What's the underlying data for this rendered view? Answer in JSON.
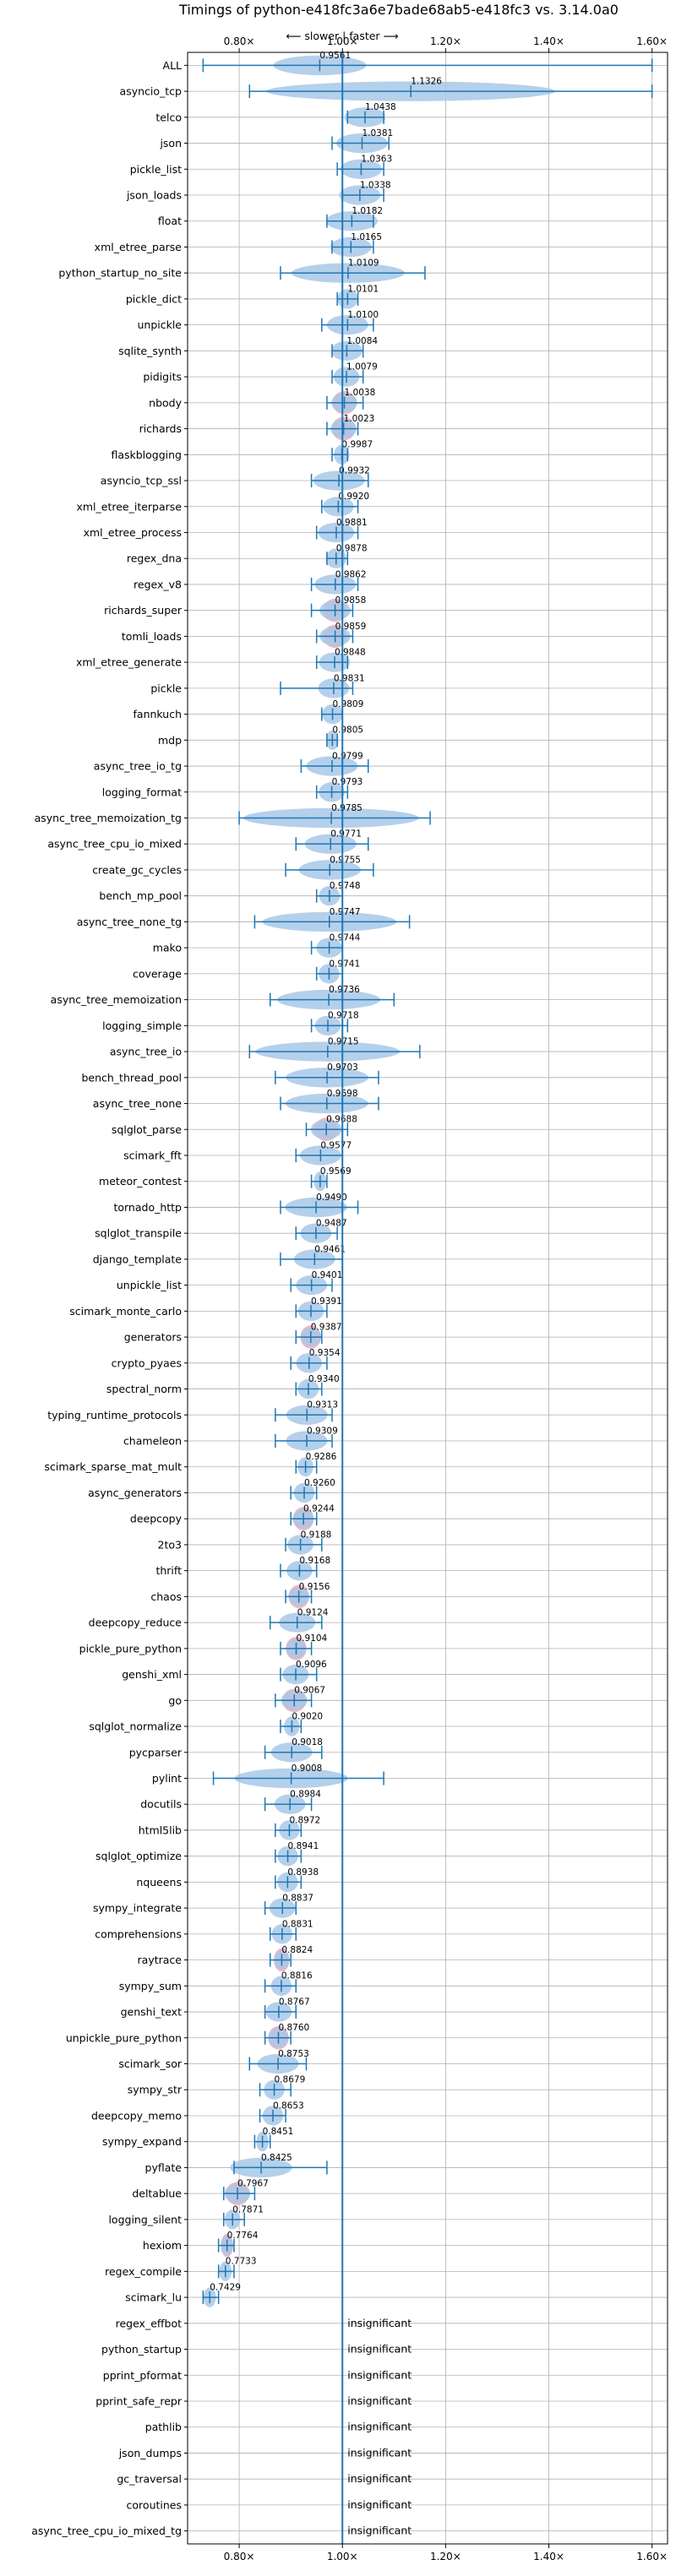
{
  "chart_data": {
    "type": "violin",
    "title": "Timings of python-e418fc3a6e7bade68ab5-e418fc3 vs. 3.14.0a0",
    "direction_label": "⟵ slower | faster ⟶",
    "x_ticks": [
      {
        "value": 0.8,
        "label": "0.80×"
      },
      {
        "value": 1.0,
        "label": "1.00×"
      },
      {
        "value": 1.2,
        "label": "1.20×"
      },
      {
        "value": 1.4,
        "label": "1.40×"
      },
      {
        "value": 1.6,
        "label": "1.60×"
      }
    ],
    "xlim": [
      0.7,
      1.63
    ],
    "reference_line": 1.0,
    "grid": true,
    "colors": {
      "violin": "#a8c8e8",
      "error_bar": "#1f77b4",
      "highlight": "#f4a8b4",
      "grid": "#b0b0b0",
      "reference": "#1f77b4"
    },
    "insignificant_label": "insignificant",
    "benchmarks": [
      {
        "name": "ALL",
        "value": 0.9561,
        "label": "0.9561",
        "lo": 0.73,
        "hi": 1.6,
        "w": 0.09
      },
      {
        "name": "asyncio_tcp",
        "value": 1.1326,
        "label": "1.1326",
        "lo": 0.82,
        "hi": 1.6,
        "w": 0.28
      },
      {
        "name": "telco",
        "value": 1.0438,
        "label": "1.0438",
        "lo": 1.01,
        "hi": 1.08,
        "w": 0.04
      },
      {
        "name": "json",
        "value": 1.0381,
        "label": "1.0381",
        "lo": 0.98,
        "hi": 1.09,
        "w": 0.05
      },
      {
        "name": "pickle_list",
        "value": 1.0363,
        "label": "1.0363",
        "lo": 0.99,
        "hi": 1.08,
        "w": 0.04
      },
      {
        "name": "json_loads",
        "value": 1.0338,
        "label": "1.0338",
        "lo": 1.0,
        "hi": 1.08,
        "w": 0.04
      },
      {
        "name": "float",
        "value": 1.0182,
        "label": "1.0182",
        "lo": 0.97,
        "hi": 1.06,
        "w": 0.05
      },
      {
        "name": "xml_etree_parse",
        "value": 1.0165,
        "label": "1.0165",
        "lo": 0.98,
        "hi": 1.06,
        "w": 0.04
      },
      {
        "name": "python_startup_no_site",
        "value": 1.0109,
        "label": "1.0109",
        "lo": 0.88,
        "hi": 1.16,
        "w": 0.11
      },
      {
        "name": "pickle_dict",
        "value": 1.0101,
        "label": "1.0101",
        "lo": 0.99,
        "hi": 1.03,
        "w": 0.02
      },
      {
        "name": "unpickle",
        "value": 1.01,
        "label": "1.0100",
        "lo": 0.96,
        "hi": 1.06,
        "w": 0.04
      },
      {
        "name": "sqlite_synth",
        "value": 1.0084,
        "label": "1.0084",
        "lo": 0.98,
        "hi": 1.04,
        "w": 0.03
      },
      {
        "name": "pidigits",
        "value": 1.0079,
        "label": "1.0079",
        "lo": 0.98,
        "hi": 1.04,
        "w": 0.025
      },
      {
        "name": "nbody",
        "value": 1.0038,
        "label": "1.0038",
        "lo": 0.97,
        "hi": 1.04,
        "w": 0.025,
        "highlight": true
      },
      {
        "name": "richards",
        "value": 1.0023,
        "label": "1.0023",
        "lo": 0.97,
        "hi": 1.03,
        "w": 0.025,
        "highlight": true
      },
      {
        "name": "flaskblogging",
        "value": 0.9987,
        "label": "0.9987",
        "lo": 0.98,
        "hi": 1.01,
        "w": 0.015
      },
      {
        "name": "asyncio_tcp_ssl",
        "value": 0.9932,
        "label": "0.9932",
        "lo": 0.94,
        "hi": 1.05,
        "w": 0.05
      },
      {
        "name": "xml_etree_iterparse",
        "value": 0.992,
        "label": "0.9920",
        "lo": 0.96,
        "hi": 1.03,
        "w": 0.03
      },
      {
        "name": "xml_etree_process",
        "value": 0.9881,
        "label": "0.9881",
        "lo": 0.95,
        "hi": 1.03,
        "w": 0.035
      },
      {
        "name": "regex_dna",
        "value": 0.9878,
        "label": "0.9878",
        "lo": 0.97,
        "hi": 1.01,
        "w": 0.02
      },
      {
        "name": "regex_v8",
        "value": 0.9862,
        "label": "0.9862",
        "lo": 0.94,
        "hi": 1.03,
        "w": 0.04
      },
      {
        "name": "richards_super",
        "value": 0.9858,
        "label": "0.9858",
        "lo": 0.94,
        "hi": 1.02,
        "w": 0.03,
        "highlight": true
      },
      {
        "name": "tomli_loads",
        "value": 0.9859,
        "label": "0.9859",
        "lo": 0.95,
        "hi": 1.02,
        "w": 0.03,
        "highlight": true
      },
      {
        "name": "xml_etree_generate",
        "value": 0.9848,
        "label": "0.9848",
        "lo": 0.95,
        "hi": 1.01,
        "w": 0.03
      },
      {
        "name": "pickle",
        "value": 0.9831,
        "label": "0.9831",
        "lo": 0.88,
        "hi": 1.02,
        "w": 0.03
      },
      {
        "name": "fannkuch",
        "value": 0.9809,
        "label": "0.9809",
        "lo": 0.96,
        "hi": 1.0,
        "w": 0.02
      },
      {
        "name": "mdp",
        "value": 0.9805,
        "label": "0.9805",
        "lo": 0.97,
        "hi": 0.99,
        "w": 0.012
      },
      {
        "name": "async_tree_io_tg",
        "value": 0.9799,
        "label": "0.9799",
        "lo": 0.92,
        "hi": 1.05,
        "w": 0.05
      },
      {
        "name": "logging_format",
        "value": 0.9793,
        "label": "0.9793",
        "lo": 0.95,
        "hi": 1.01,
        "w": 0.025
      },
      {
        "name": "async_tree_memoization_tg",
        "value": 0.9785,
        "label": "0.9785",
        "lo": 0.8,
        "hi": 1.17,
        "w": 0.17
      },
      {
        "name": "async_tree_cpu_io_mixed",
        "value": 0.9771,
        "label": "0.9771",
        "lo": 0.91,
        "hi": 1.05,
        "w": 0.05
      },
      {
        "name": "create_gc_cycles",
        "value": 0.9755,
        "label": "0.9755",
        "lo": 0.89,
        "hi": 1.06,
        "w": 0.06
      },
      {
        "name": "bench_mp_pool",
        "value": 0.9748,
        "label": "0.9748",
        "lo": 0.95,
        "hi": 1.0,
        "w": 0.02
      },
      {
        "name": "async_tree_none_tg",
        "value": 0.9747,
        "label": "0.9747",
        "lo": 0.83,
        "hi": 1.13,
        "w": 0.13
      },
      {
        "name": "mako",
        "value": 0.9744,
        "label": "0.9744",
        "lo": 0.94,
        "hi": 1.0,
        "w": 0.025
      },
      {
        "name": "coverage",
        "value": 0.9741,
        "label": "0.9741",
        "lo": 0.95,
        "hi": 1.0,
        "w": 0.02
      },
      {
        "name": "async_tree_memoization",
        "value": 0.9736,
        "label": "0.9736",
        "lo": 0.86,
        "hi": 1.1,
        "w": 0.1
      },
      {
        "name": "logging_simple",
        "value": 0.9718,
        "label": "0.9718",
        "lo": 0.94,
        "hi": 1.01,
        "w": 0.025
      },
      {
        "name": "async_tree_io",
        "value": 0.9715,
        "label": "0.9715",
        "lo": 0.82,
        "hi": 1.15,
        "w": 0.14
      },
      {
        "name": "bench_thread_pool",
        "value": 0.9703,
        "label": "0.9703",
        "lo": 0.87,
        "hi": 1.07,
        "w": 0.08
      },
      {
        "name": "async_tree_none",
        "value": 0.9698,
        "label": "0.9698",
        "lo": 0.88,
        "hi": 1.07,
        "w": 0.08
      },
      {
        "name": "sqlglot_parse",
        "value": 0.9688,
        "label": "0.9688",
        "lo": 0.93,
        "hi": 1.01,
        "w": 0.03,
        "highlight": true
      },
      {
        "name": "scimark_fft",
        "value": 0.9577,
        "label": "0.9577",
        "lo": 0.91,
        "hi": 1.0,
        "w": 0.04
      },
      {
        "name": "meteor_contest",
        "value": 0.9569,
        "label": "0.9569",
        "lo": 0.94,
        "hi": 0.97,
        "w": 0.012
      },
      {
        "name": "tornado_http",
        "value": 0.949,
        "label": "0.9490",
        "lo": 0.88,
        "hi": 1.03,
        "w": 0.06
      },
      {
        "name": "sqlglot_transpile",
        "value": 0.9487,
        "label": "0.9487",
        "lo": 0.91,
        "hi": 0.99,
        "w": 0.03
      },
      {
        "name": "django_template",
        "value": 0.9461,
        "label": "0.9461",
        "lo": 0.88,
        "hi": 1.0,
        "w": 0.04
      },
      {
        "name": "unpickle_list",
        "value": 0.9401,
        "label": "0.9401",
        "lo": 0.9,
        "hi": 0.98,
        "w": 0.03
      },
      {
        "name": "scimark_monte_carlo",
        "value": 0.9391,
        "label": "0.9391",
        "lo": 0.91,
        "hi": 0.97,
        "w": 0.025
      },
      {
        "name": "generators",
        "value": 0.9387,
        "label": "0.9387",
        "lo": 0.91,
        "hi": 0.96,
        "w": 0.02,
        "highlight": true
      },
      {
        "name": "crypto_pyaes",
        "value": 0.9354,
        "label": "0.9354",
        "lo": 0.9,
        "hi": 0.97,
        "w": 0.025
      },
      {
        "name": "spectral_norm",
        "value": 0.934,
        "label": "0.9340",
        "lo": 0.91,
        "hi": 0.96,
        "w": 0.02
      },
      {
        "name": "typing_runtime_protocols",
        "value": 0.9313,
        "label": "0.9313",
        "lo": 0.87,
        "hi": 0.98,
        "w": 0.04
      },
      {
        "name": "chameleon",
        "value": 0.9309,
        "label": "0.9309",
        "lo": 0.87,
        "hi": 0.98,
        "w": 0.04
      },
      {
        "name": "scimark_sparse_mat_mult",
        "value": 0.9286,
        "label": "0.9286",
        "lo": 0.91,
        "hi": 0.95,
        "w": 0.015
      },
      {
        "name": "async_generators",
        "value": 0.926,
        "label": "0.9260",
        "lo": 0.9,
        "hi": 0.95,
        "w": 0.02
      },
      {
        "name": "deepcopy",
        "value": 0.9244,
        "label": "0.9244",
        "lo": 0.9,
        "hi": 0.95,
        "w": 0.02,
        "highlight": true
      },
      {
        "name": "2to3",
        "value": 0.9188,
        "label": "0.9188",
        "lo": 0.89,
        "hi": 0.96,
        "w": 0.025
      },
      {
        "name": "thrift",
        "value": 0.9168,
        "label": "0.9168",
        "lo": 0.88,
        "hi": 0.95,
        "w": 0.025
      },
      {
        "name": "chaos",
        "value": 0.9156,
        "label": "0.9156",
        "lo": 0.89,
        "hi": 0.94,
        "w": 0.02,
        "highlight": true
      },
      {
        "name": "deepcopy_reduce",
        "value": 0.9124,
        "label": "0.9124",
        "lo": 0.86,
        "hi": 0.96,
        "w": 0.035
      },
      {
        "name": "pickle_pure_python",
        "value": 0.9104,
        "label": "0.9104",
        "lo": 0.88,
        "hi": 0.94,
        "w": 0.02,
        "highlight": true
      },
      {
        "name": "genshi_xml",
        "value": 0.9096,
        "label": "0.9096",
        "lo": 0.88,
        "hi": 0.95,
        "w": 0.025
      },
      {
        "name": "go",
        "value": 0.9067,
        "label": "0.9067",
        "lo": 0.87,
        "hi": 0.94,
        "w": 0.025,
        "highlight": true
      },
      {
        "name": "sqlglot_normalize",
        "value": 0.902,
        "label": "0.9020",
        "lo": 0.88,
        "hi": 0.92,
        "w": 0.015
      },
      {
        "name": "pycparser",
        "value": 0.9018,
        "label": "0.9018",
        "lo": 0.85,
        "hi": 0.96,
        "w": 0.04
      },
      {
        "name": "pylint",
        "value": 0.9008,
        "label": "0.9008",
        "lo": 0.75,
        "hi": 1.08,
        "w": 0.11
      },
      {
        "name": "docutils",
        "value": 0.8984,
        "label": "0.8984",
        "lo": 0.85,
        "hi": 0.94,
        "w": 0.03
      },
      {
        "name": "html5lib",
        "value": 0.8972,
        "label": "0.8972",
        "lo": 0.87,
        "hi": 0.92,
        "w": 0.02
      },
      {
        "name": "sqlglot_optimize",
        "value": 0.8941,
        "label": "0.8941",
        "lo": 0.87,
        "hi": 0.92,
        "w": 0.02
      },
      {
        "name": "nqueens",
        "value": 0.8938,
        "label": "0.8938",
        "lo": 0.87,
        "hi": 0.92,
        "w": 0.02
      },
      {
        "name": "sympy_integrate",
        "value": 0.8837,
        "label": "0.8837",
        "lo": 0.85,
        "hi": 0.91,
        "w": 0.025
      },
      {
        "name": "comprehensions",
        "value": 0.8831,
        "label": "0.8831",
        "lo": 0.86,
        "hi": 0.91,
        "w": 0.02
      },
      {
        "name": "raytrace",
        "value": 0.8824,
        "label": "0.8824",
        "lo": 0.86,
        "hi": 0.9,
        "w": 0.015,
        "highlight": true
      },
      {
        "name": "sympy_sum",
        "value": 0.8816,
        "label": "0.8816",
        "lo": 0.85,
        "hi": 0.91,
        "w": 0.02
      },
      {
        "name": "genshi_text",
        "value": 0.8767,
        "label": "0.8767",
        "lo": 0.85,
        "hi": 0.91,
        "w": 0.025
      },
      {
        "name": "unpickle_pure_python",
        "value": 0.876,
        "label": "0.8760",
        "lo": 0.85,
        "hi": 0.9,
        "w": 0.02,
        "highlight": true
      },
      {
        "name": "scimark_sor",
        "value": 0.8753,
        "label": "0.8753",
        "lo": 0.82,
        "hi": 0.93,
        "w": 0.04
      },
      {
        "name": "sympy_str",
        "value": 0.8679,
        "label": "0.8679",
        "lo": 0.84,
        "hi": 0.9,
        "w": 0.02
      },
      {
        "name": "deepcopy_memo",
        "value": 0.8653,
        "label": "0.8653",
        "lo": 0.84,
        "hi": 0.89,
        "w": 0.02
      },
      {
        "name": "sympy_expand",
        "value": 0.8451,
        "label": "0.8451",
        "lo": 0.83,
        "hi": 0.86,
        "w": 0.012
      },
      {
        "name": "pyflate",
        "value": 0.8425,
        "label": "0.8425",
        "lo": 0.79,
        "hi": 0.97,
        "w": 0.06
      },
      {
        "name": "deltablue",
        "value": 0.7967,
        "label": "0.7967",
        "lo": 0.77,
        "hi": 0.83,
        "w": 0.025,
        "highlight": true
      },
      {
        "name": "logging_silent",
        "value": 0.7871,
        "label": "0.7871",
        "lo": 0.77,
        "hi": 0.81,
        "w": 0.015
      },
      {
        "name": "hexiom",
        "value": 0.7764,
        "label": "0.7764",
        "lo": 0.76,
        "hi": 0.79,
        "w": 0.012,
        "highlight": true
      },
      {
        "name": "regex_compile",
        "value": 0.7733,
        "label": "0.7733",
        "lo": 0.76,
        "hi": 0.79,
        "w": 0.012
      },
      {
        "name": "scimark_lu",
        "value": 0.7429,
        "label": "0.7429",
        "lo": 0.73,
        "hi": 0.76,
        "w": 0.012
      },
      {
        "name": "regex_effbot",
        "insignificant": true
      },
      {
        "name": "python_startup",
        "insignificant": true
      },
      {
        "name": "pprint_pformat",
        "insignificant": true
      },
      {
        "name": "pprint_safe_repr",
        "insignificant": true
      },
      {
        "name": "pathlib",
        "insignificant": true
      },
      {
        "name": "json_dumps",
        "insignificant": true
      },
      {
        "name": "gc_traversal",
        "insignificant": true
      },
      {
        "name": "coroutines",
        "insignificant": true
      },
      {
        "name": "async_tree_cpu_io_mixed_tg",
        "insignificant": true
      }
    ]
  }
}
